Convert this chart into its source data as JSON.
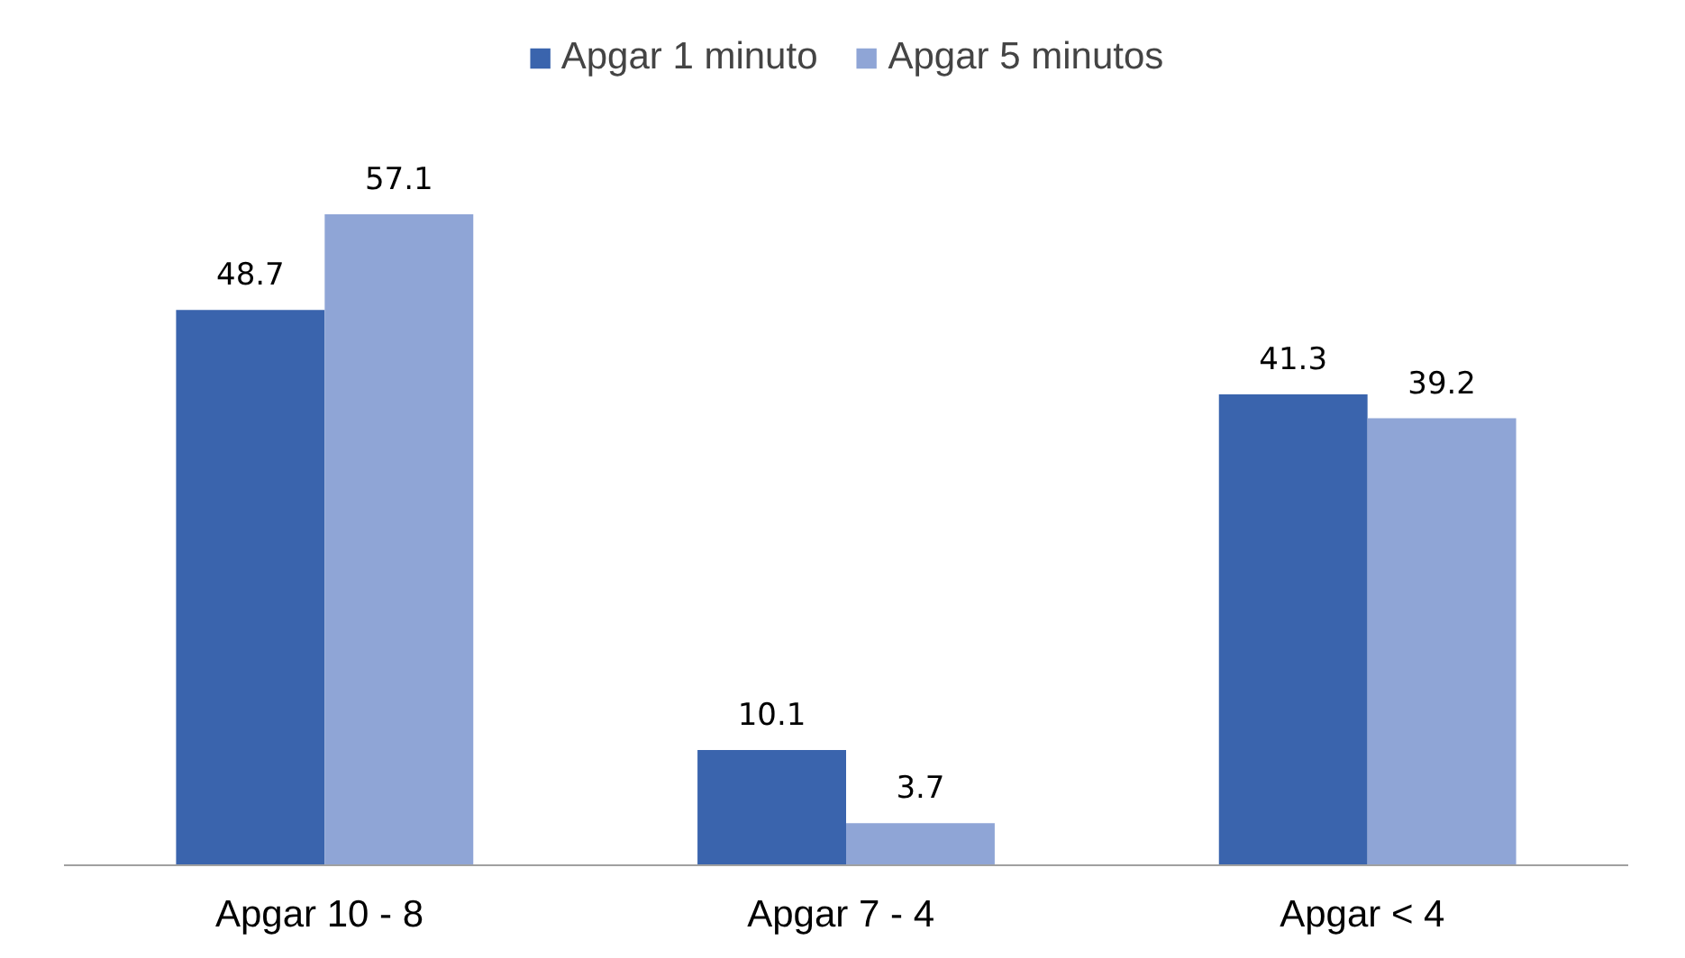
{
  "chart_data": {
    "type": "bar",
    "categories": [
      "Apgar  10 - 8",
      "Apgar  7 - 4",
      "Apgar  < 4"
    ],
    "series": [
      {
        "name": "Apgar 1 minuto",
        "color": "#3a64ad",
        "values": [
          48.7,
          10.1,
          41.3
        ]
      },
      {
        "name": "Apgar 5 minutos",
        "color": "#8fa5d6",
        "values": [
          57.1,
          3.7,
          39.2
        ]
      }
    ],
    "data_labels": true,
    "legend": "top",
    "grid": false
  }
}
